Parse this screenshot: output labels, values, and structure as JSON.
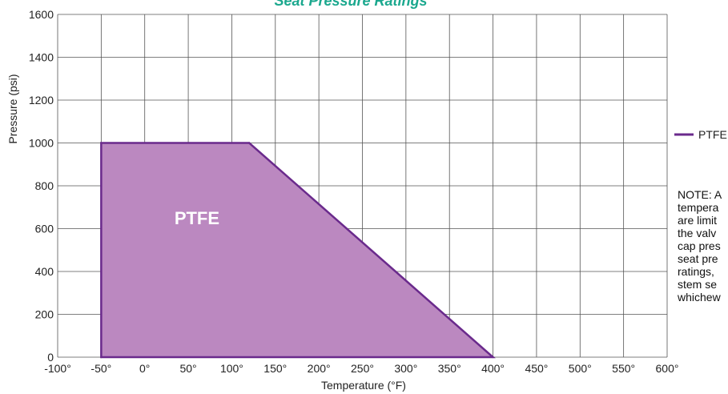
{
  "chart_data": {
    "type": "area",
    "title": "Seat Pressure Ratings",
    "xlabel": "Temperature (°F)",
    "ylabel": "Pressure (psi)",
    "xlim": [
      -100,
      600
    ],
    "ylim": [
      0,
      1600
    ],
    "x_ticks": [
      -100,
      -50,
      0,
      50,
      100,
      150,
      200,
      250,
      300,
      350,
      400,
      450,
      500,
      550,
      600
    ],
    "x_tick_labels": [
      "-100°",
      "-50°",
      "0°",
      "50°",
      "100°",
      "150°",
      "200°",
      "250°",
      "300°",
      "350°",
      "400°",
      "450°",
      "500°",
      "550°",
      "600°"
    ],
    "y_ticks": [
      0,
      200,
      400,
      600,
      800,
      1000,
      1200,
      1400,
      1600
    ],
    "y_tick_labels": [
      "0",
      "200",
      "400",
      "600",
      "800",
      "1000",
      "1200",
      "1400",
      "1600"
    ],
    "grid": true,
    "legend_position": "right",
    "series": [
      {
        "name": "PTFE",
        "region_label": "PTFE",
        "color": "#6a2a8c",
        "fill": "#bb88c0",
        "x": [
          -50,
          -50,
          120,
          400
        ],
        "y": [
          0,
          1000,
          1000,
          0
        ]
      }
    ],
    "note_lines": [
      "NOTE: A",
      "tempera",
      "are limit",
      "the valv",
      "cap pres",
      "seat pre",
      "ratings,",
      "stem se",
      "whichew"
    ],
    "title_color": "#1ba88e"
  }
}
